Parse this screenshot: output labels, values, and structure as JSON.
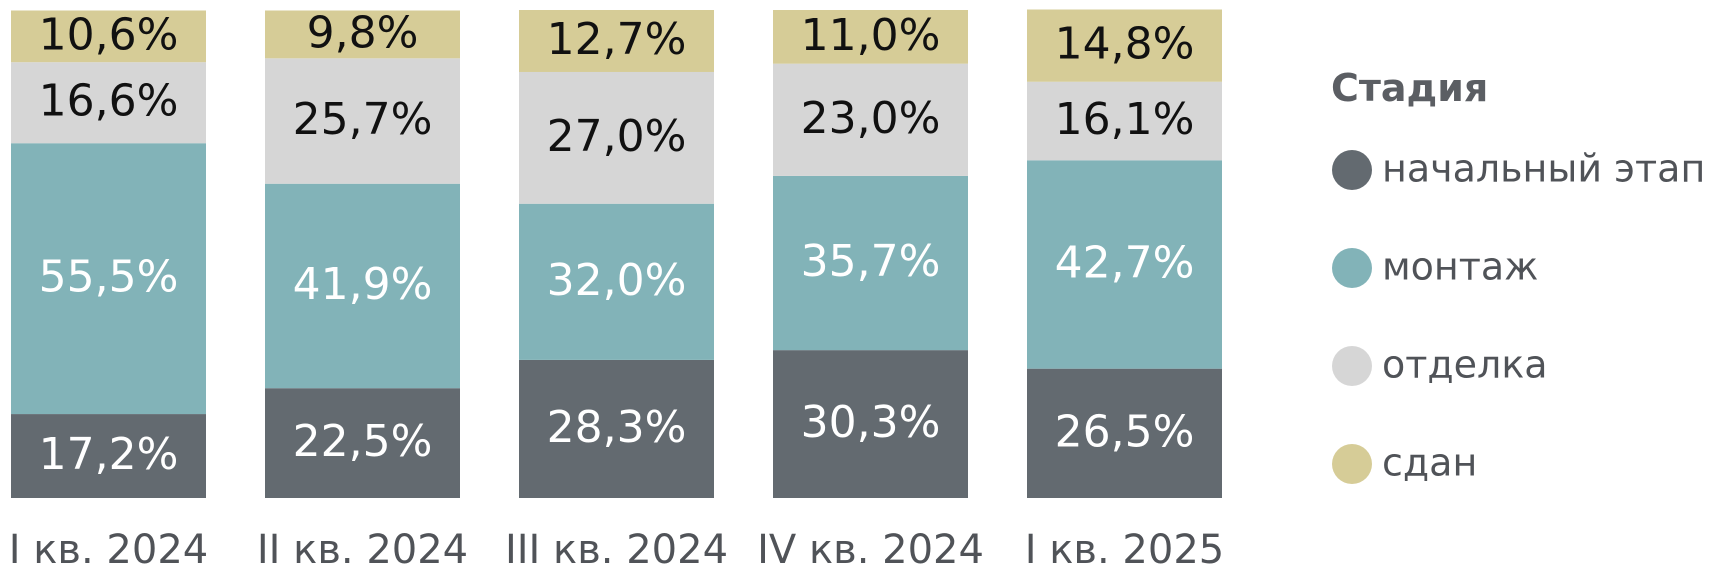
{
  "chart_data": {
    "type": "bar",
    "stacked": true,
    "normalized": true,
    "categories": [
      "I кв. 2024",
      "II кв. 2024",
      "III кв. 2024",
      "IV кв. 2024",
      "I кв. 2025"
    ],
    "series": [
      {
        "name": "начальный этап",
        "values": [
          17.2,
          22.5,
          28.3,
          30.3,
          26.5
        ],
        "labels": [
          "17,2%",
          "22,5%",
          "28,3%",
          "30,3%",
          "26,5%"
        ],
        "color": "#636a70",
        "label_color": "#ffffff"
      },
      {
        "name": "монтаж",
        "values": [
          55.5,
          41.9,
          32.0,
          35.7,
          42.7
        ],
        "labels": [
          "55,5%",
          "41,9%",
          "32,0%",
          "35,7%",
          "42,7%"
        ],
        "color": "#82b3b8",
        "label_color": "#ffffff"
      },
      {
        "name": "отделка",
        "values": [
          16.6,
          25.7,
          27.0,
          23.0,
          16.1
        ],
        "labels": [
          "16,6%",
          "25,7%",
          "27,0%",
          "23,0%",
          "16,1%"
        ],
        "color": "#d6d6d6",
        "label_color": "#111111"
      },
      {
        "name": "сдан",
        "values": [
          10.6,
          9.8,
          12.7,
          11.0,
          14.8
        ],
        "labels": [
          "10,6%",
          "9,8%",
          "12,7%",
          "11,0%",
          "14,8%"
        ],
        "color": "#d6cc97",
        "label_color": "#111111"
      }
    ],
    "legend": {
      "title": "Стадия",
      "position": "right"
    },
    "ylim": [
      0,
      100
    ],
    "grid": false,
    "title": "",
    "xlabel": "",
    "ylabel": ""
  }
}
